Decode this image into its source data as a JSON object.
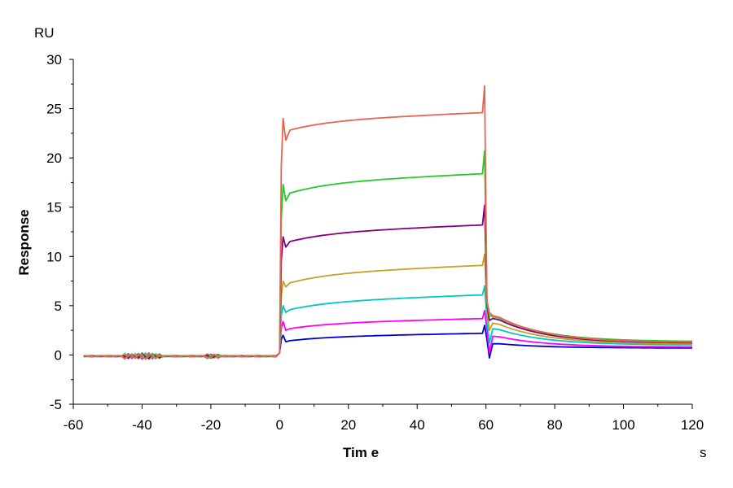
{
  "chart_data": {
    "type": "line",
    "title": "",
    "xlabel": "Tim e",
    "ylabel": "Response",
    "x_unit": "s",
    "y_unit": "RU",
    "xlim": [
      -60,
      120
    ],
    "ylim": [
      -5,
      30
    ],
    "x_ticks": [
      -60,
      -40,
      -20,
      0,
      20,
      40,
      60,
      80,
      100,
      120
    ],
    "y_ticks": [
      -5,
      0,
      5,
      10,
      15,
      20,
      25,
      30
    ],
    "x_tick_labels": [
      "-60",
      "-40",
      "-20",
      "0",
      "20",
      "40",
      "60",
      "80",
      "100",
      "120"
    ],
    "y_tick_labels": [
      "-5",
      "0",
      "5",
      "10",
      "15",
      "20",
      "25",
      "30"
    ],
    "grid": false,
    "legend": "none",
    "series": [
      {
        "color": "#0000cc",
        "plateau_start": 1.4,
        "plateau_end": 2.2,
        "peak": 2.0,
        "end_peak": 3.0,
        "dip": -0.3,
        "tail_start": 1.2,
        "tail_end": 0.7
      },
      {
        "color": "#ff00ff",
        "plateau_start": 2.6,
        "plateau_end": 3.7,
        "peak": 3.4,
        "end_peak": 4.5,
        "dip": 0.2,
        "tail_start": 2.0,
        "tail_end": 0.8
      },
      {
        "color": "#00c8c8",
        "plateau_start": 4.5,
        "plateau_end": 6.1,
        "peak": 5.0,
        "end_peak": 7.0,
        "dip": 1.2,
        "tail_start": 2.8,
        "tail_end": 1.0
      },
      {
        "color": "#c8a028",
        "plateau_start": 7.2,
        "plateau_end": 9.1,
        "peak": 7.5,
        "end_peak": 10.2,
        "dip": 2.5,
        "tail_start": 3.4,
        "tail_end": 1.1
      },
      {
        "color": "#800080",
        "plateau_start": 11.4,
        "plateau_end": 13.2,
        "peak": 12.0,
        "end_peak": 15.2,
        "dip": 3.5,
        "tail_start": 3.9,
        "tail_end": 1.2
      },
      {
        "color": "#28c828",
        "plateau_start": 16.3,
        "plateau_end": 18.4,
        "peak": 17.3,
        "end_peak": 20.7,
        "dip": 4.0,
        "tail_start": 4.1,
        "tail_end": 1.35
      },
      {
        "color": "#e86450",
        "plateau_start": 22.7,
        "plateau_end": 24.6,
        "peak": 24.0,
        "end_peak": 27.3,
        "dip": 4.3,
        "tail_start": 4.2,
        "tail_end": 1.25
      }
    ]
  }
}
